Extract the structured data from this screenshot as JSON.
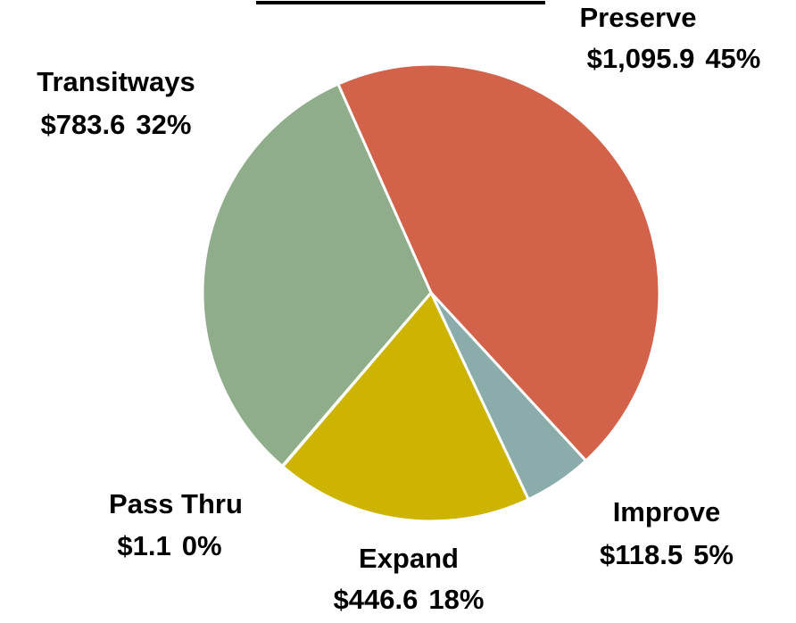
{
  "chart_data": {
    "type": "pie",
    "categories": [
      "Preserve",
      "Improve",
      "Expand",
      "Pass Thru",
      "Transitways"
    ],
    "values": [
      1095.9,
      118.5,
      446.6,
      1.1,
      783.6
    ],
    "value_labels": [
      "$1,095.9",
      "$118.5",
      "$446.6",
      "$1.1",
      "$783.6"
    ],
    "percent_labels": [
      "45%",
      "5%",
      "18%",
      "0%",
      "32%"
    ],
    "colors": [
      "#d2634a",
      "#8aacab",
      "#ccb400",
      "#7f8f7f",
      "#8fad8a"
    ]
  }
}
